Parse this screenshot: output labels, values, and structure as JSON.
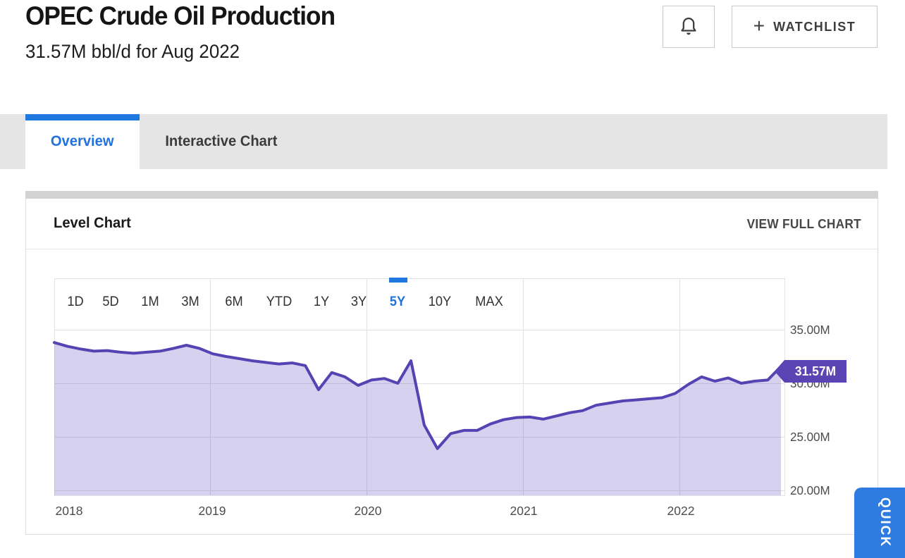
{
  "header": {
    "title": "OPEC Crude Oil Production",
    "subtitle": "31.57M bbl/d for Aug 2022",
    "watchlist_plus": "+",
    "watchlist_label": "WATCHLIST"
  },
  "tabs": [
    {
      "label": "Overview",
      "active": true
    },
    {
      "label": "Interactive Chart",
      "active": false
    }
  ],
  "panel": {
    "title": "Level Chart",
    "view_full_chart_label": "VIEW FULL CHART"
  },
  "quick_tab": {
    "label": "QUICK"
  },
  "colors": {
    "accent_blue": "#2272dd",
    "tab_bar_blue": "#1e78e0",
    "line_purple": "#5742b3",
    "area_fill_purple": "rgba(104,84,196,0.27)",
    "badge_purple": "#5a43b2",
    "quick_tab_blue": "#2e7ce1",
    "grid_gray": "#e1e1e1"
  },
  "chart_data": {
    "type": "area",
    "title": "Level Chart",
    "series_name": "OPEC Crude Oil Production",
    "unit": "M bbl/d",
    "grid": true,
    "legend": "none",
    "ylim": [
      19.5,
      39.8
    ],
    "y_ticks": [
      35,
      30,
      25,
      20
    ],
    "y_tick_labels": [
      "35.00M",
      "30.00M",
      "25.00M",
      "20.00M"
    ],
    "x_tick_labels": [
      "2018",
      "2019",
      "2020",
      "2021",
      "2022"
    ],
    "last_point_badge": "31.57M",
    "last_point_value": 31.57,
    "last_point_month": "2022-08",
    "range_selector": {
      "active": "5Y",
      "options": [
        "1D",
        "5D",
        "1M",
        "3M",
        "6M",
        "YTD",
        "1Y",
        "3Y",
        "5Y",
        "10Y",
        "MAX"
      ]
    },
    "x": [
      "2018-01",
      "2018-02",
      "2018-03",
      "2018-04",
      "2018-05",
      "2018-06",
      "2018-07",
      "2018-08",
      "2018-09",
      "2018-10",
      "2018-11",
      "2018-12",
      "2019-01",
      "2019-02",
      "2019-03",
      "2019-04",
      "2019-05",
      "2019-06",
      "2019-07",
      "2019-08",
      "2019-09",
      "2019-10",
      "2019-11",
      "2019-12",
      "2020-01",
      "2020-02",
      "2020-03",
      "2020-04",
      "2020-05",
      "2020-06",
      "2020-07",
      "2020-08",
      "2020-09",
      "2020-10",
      "2020-11",
      "2020-12",
      "2021-01",
      "2021-02",
      "2021-03",
      "2021-04",
      "2021-05",
      "2021-06",
      "2021-07",
      "2021-08",
      "2021-09",
      "2021-10",
      "2021-11",
      "2021-12",
      "2022-01",
      "2022-02",
      "2022-03",
      "2022-04",
      "2022-05",
      "2022-06",
      "2022-07",
      "2022-08"
    ],
    "values": [
      33.8,
      33.45,
      33.2,
      33.0,
      33.05,
      32.9,
      32.8,
      32.9,
      33.0,
      33.25,
      33.55,
      33.25,
      32.75,
      32.5,
      32.3,
      32.1,
      31.95,
      31.8,
      31.9,
      31.65,
      29.4,
      31.0,
      30.6,
      29.8,
      30.3,
      30.45,
      30.0,
      32.1,
      26.1,
      23.9,
      25.3,
      25.6,
      25.6,
      26.2,
      26.6,
      26.8,
      26.85,
      26.65,
      26.95,
      27.25,
      27.45,
      27.95,
      28.15,
      28.35,
      28.45,
      28.55,
      28.65,
      29.05,
      29.9,
      30.6,
      30.2,
      30.5,
      30.0,
      30.2,
      30.3,
      31.57
    ]
  }
}
